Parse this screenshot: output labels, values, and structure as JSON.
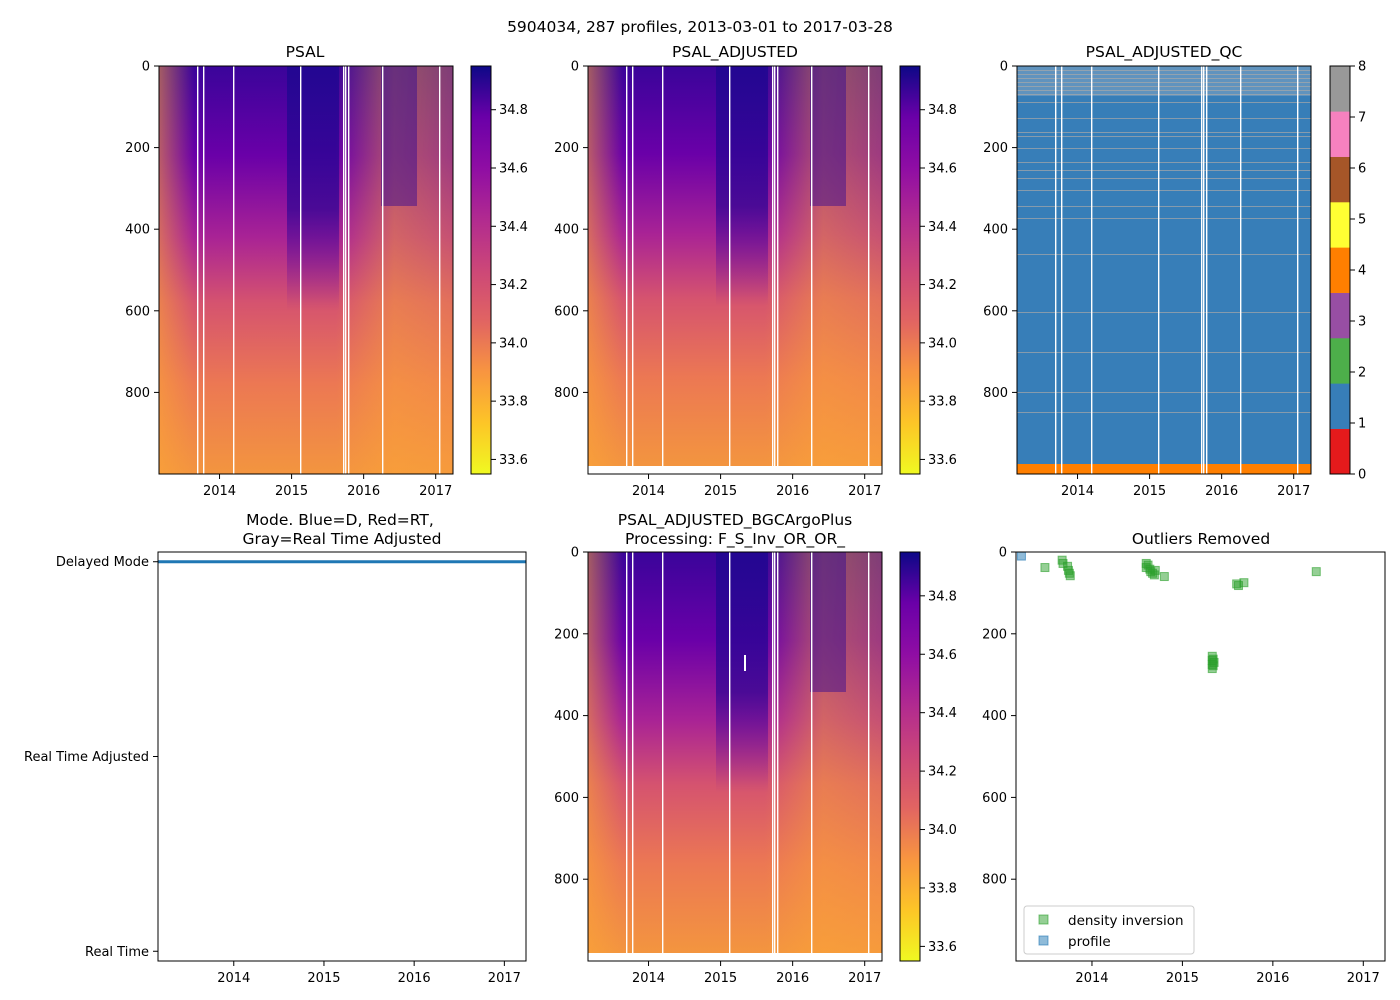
{
  "figure": {
    "suptitle": "5904034, 287 profiles, 2013-03-01 to 2017-03-28"
  },
  "chart_data": [
    {
      "id": "psal",
      "type": "heatmap",
      "title": "PSAL",
      "x_ticks": [
        "2014",
        "2015",
        "2016",
        "2017"
      ],
      "x_tick_values": [
        2014,
        2015,
        2016,
        2017
      ],
      "xlim": [
        2013.16,
        2017.24
      ],
      "y_ticks": [
        "0",
        "200",
        "400",
        "600",
        "800"
      ],
      "y_tick_values": [
        0,
        200,
        400,
        600,
        800
      ],
      "ylim": [
        0,
        1000
      ],
      "y_inverted": true,
      "colormap": "plasma_r",
      "colorbar_ticks": [
        "33.6",
        "33.8",
        "34.0",
        "34.2",
        "34.4",
        "34.6",
        "34.8"
      ],
      "colorbar_tick_values": [
        33.6,
        33.8,
        34.0,
        34.2,
        34.4,
        34.6,
        34.8
      ],
      "clim": [
        33.55,
        34.95
      ]
    },
    {
      "id": "psal_adjusted",
      "type": "heatmap",
      "title": "PSAL_ADJUSTED",
      "x_ticks": [
        "2014",
        "2015",
        "2016",
        "2017"
      ],
      "x_tick_values": [
        2014,
        2015,
        2016,
        2017
      ],
      "xlim": [
        2013.16,
        2017.24
      ],
      "y_ticks": [
        "0",
        "200",
        "400",
        "600",
        "800"
      ],
      "y_tick_values": [
        0,
        200,
        400,
        600,
        800
      ],
      "ylim": [
        0,
        1000
      ],
      "y_inverted": true,
      "max_depth": 980,
      "colormap": "plasma_r",
      "colorbar_ticks": [
        "33.6",
        "33.8",
        "34.0",
        "34.2",
        "34.4",
        "34.6",
        "34.8"
      ],
      "colorbar_tick_values": [
        33.6,
        33.8,
        34.0,
        34.2,
        34.4,
        34.6,
        34.8
      ],
      "clim": [
        33.55,
        34.95
      ]
    },
    {
      "id": "psal_adjusted_qc",
      "type": "heatmap",
      "title": "PSAL_ADJUSTED_QC",
      "x_ticks": [
        "2014",
        "2015",
        "2016",
        "2017"
      ],
      "x_tick_values": [
        2014,
        2015,
        2016,
        2017
      ],
      "xlim": [
        2013.16,
        2017.24
      ],
      "y_ticks": [
        "0",
        "200",
        "400",
        "600",
        "800"
      ],
      "y_tick_values": [
        0,
        200,
        400,
        600,
        800
      ],
      "ylim": [
        0,
        1000
      ],
      "y_inverted": true,
      "dominant_flag": 1,
      "bottom_flag": 4,
      "colorbar_ticks": [
        "0",
        "1",
        "2",
        "3",
        "4",
        "5",
        "6",
        "7",
        "8"
      ],
      "colorbar_tick_values": [
        0,
        1,
        2,
        3,
        4,
        5,
        6,
        7,
        8
      ],
      "qc_colors": [
        "#e41a1c",
        "#377eb8",
        "#4daf4a",
        "#984ea3",
        "#ff7f00",
        "#ffff33",
        "#a65628",
        "#f781bf",
        "#999999"
      ]
    },
    {
      "id": "mode",
      "type": "scatter",
      "title_line1": "Mode. Blue=D, Red=RT,",
      "title_line2": "Gray=Real Time Adjusted",
      "x_ticks": [
        "2014",
        "2015",
        "2016",
        "2017"
      ],
      "x_tick_values": [
        2014,
        2015,
        2016,
        2017
      ],
      "xlim": [
        2013.16,
        2017.24
      ],
      "y_ticks": [
        "Delayed Mode",
        "Real Time Adjusted",
        "Real Time"
      ],
      "y_tick_values": [
        2,
        1,
        0
      ],
      "ylim": [
        -0.05,
        2.05
      ],
      "series": [
        {
          "name": "Delayed Mode",
          "y": 2,
          "x_start": 2013.16,
          "x_end": 2017.24,
          "color": "#1f77b4"
        }
      ]
    },
    {
      "id": "bgc_plus",
      "type": "heatmap",
      "title_line1": "PSAL_ADJUSTED_BGCArgoPlus",
      "title_line2": "Processing: F_S_Inv_OR_OR_",
      "x_ticks": [
        "2014",
        "2015",
        "2016",
        "2017"
      ],
      "x_tick_values": [
        2014,
        2015,
        2016,
        2017
      ],
      "xlim": [
        2013.16,
        2017.24
      ],
      "y_ticks": [
        "0",
        "200",
        "400",
        "600",
        "800"
      ],
      "y_tick_values": [
        0,
        200,
        400,
        600,
        800
      ],
      "ylim": [
        0,
        1000
      ],
      "y_inverted": true,
      "max_depth": 980,
      "colormap": "plasma_r",
      "colorbar_ticks": [
        "33.6",
        "33.8",
        "34.0",
        "34.2",
        "34.4",
        "34.6",
        "34.8"
      ],
      "colorbar_tick_values": [
        33.6,
        33.8,
        34.0,
        34.2,
        34.4,
        34.6,
        34.8
      ],
      "clim": [
        33.55,
        34.95
      ]
    },
    {
      "id": "outliers",
      "type": "scatter",
      "title": "Outliers Removed",
      "x_ticks": [
        "2014",
        "2015",
        "2016",
        "2017"
      ],
      "x_tick_values": [
        2014,
        2015,
        2016,
        2017
      ],
      "xlim": [
        2013.16,
        2017.24
      ],
      "y_ticks": [
        "0",
        "200",
        "400",
        "600",
        "800"
      ],
      "y_tick_values": [
        0,
        200,
        400,
        600,
        800
      ],
      "ylim": [
        0,
        1000
      ],
      "y_inverted": true,
      "legend_position": "lower-left",
      "series": [
        {
          "name": "density inversion",
          "color": "#2ca02c",
          "points": [
            [
              2013.48,
              38
            ],
            [
              2013.67,
              20
            ],
            [
              2013.68,
              28
            ],
            [
              2013.73,
              35
            ],
            [
              2013.74,
              45
            ],
            [
              2013.75,
              52
            ],
            [
              2013.76,
              58
            ],
            [
              2014.6,
              28
            ],
            [
              2014.6,
              38
            ],
            [
              2014.62,
              32
            ],
            [
              2014.64,
              42
            ],
            [
              2014.65,
              48
            ],
            [
              2014.67,
              52
            ],
            [
              2014.69,
              56
            ],
            [
              2014.7,
              45
            ],
            [
              2014.8,
              60
            ],
            [
              2015.33,
              255
            ],
            [
              2015.33,
              265
            ],
            [
              2015.33,
              275
            ],
            [
              2015.33,
              285
            ],
            [
              2015.34,
              262
            ],
            [
              2015.34,
              278
            ],
            [
              2015.35,
              270
            ],
            [
              2015.6,
              78
            ],
            [
              2015.62,
              82
            ],
            [
              2015.68,
              75
            ],
            [
              2016.48,
              48
            ]
          ]
        },
        {
          "name": "profile",
          "color": "#1f77b4",
          "points": [
            [
              2013.22,
              10
            ]
          ]
        }
      ]
    }
  ]
}
